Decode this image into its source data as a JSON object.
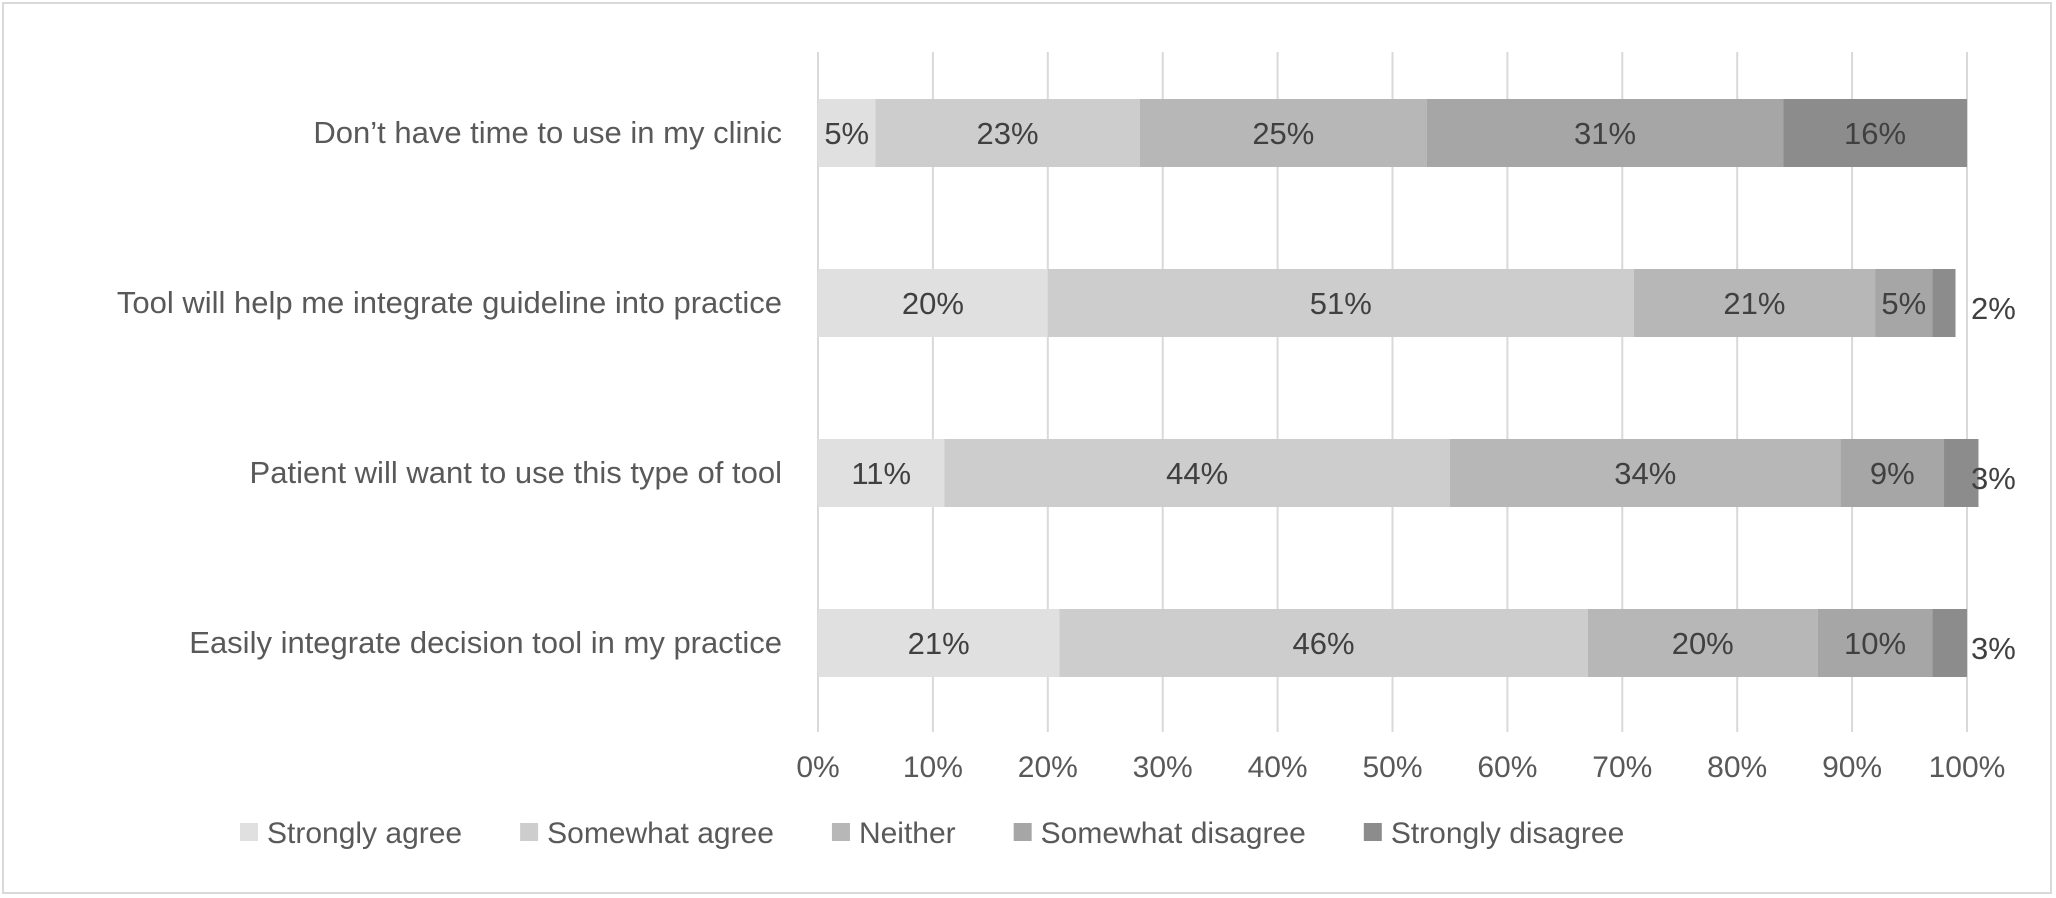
{
  "chart_data": {
    "type": "bar",
    "orientation": "horizontal",
    "stacked": "100%",
    "title": "",
    "xlabel": "",
    "ylabel": "",
    "xlim": [
      0,
      100
    ],
    "x_ticks": [
      "0%",
      "10%",
      "20%",
      "30%",
      "40%",
      "50%",
      "60%",
      "70%",
      "80%",
      "90%",
      "100%"
    ],
    "grid": "vertical",
    "legend_position": "bottom",
    "categories": [
      "Don’t have time to use in my clinic",
      "Tool will help me integrate guideline into practice",
      "Patient will want to use this type of tool",
      "Easily integrate decision tool in my practice"
    ],
    "series": [
      {
        "name": "Strongly agree",
        "color": "#e0e0e0",
        "values": [
          5,
          20,
          11,
          21
        ],
        "labels": [
          "5%",
          "20%",
          "11%",
          "21%"
        ]
      },
      {
        "name": "Somewhat agree",
        "color": "#cdcdcd",
        "values": [
          23,
          51,
          44,
          46
        ],
        "labels": [
          "23%",
          "51%",
          "44%",
          "46%"
        ]
      },
      {
        "name": "Neither",
        "color": "#b7b7b7",
        "values": [
          25,
          21,
          34,
          20
        ],
        "labels": [
          "25%",
          "21%",
          "34%",
          "20%"
        ]
      },
      {
        "name": "Somewhat disagree",
        "color": "#a6a6a6",
        "values": [
          31,
          5,
          9,
          10
        ],
        "labels": [
          "31%",
          "5%",
          "9%",
          "10%"
        ]
      },
      {
        "name": "Strongly disagree",
        "color": "#8c8c8c",
        "values": [
          16,
          2,
          3,
          3
        ],
        "labels": [
          "16%",
          "2%",
          "3%",
          "3%"
        ]
      }
    ]
  }
}
